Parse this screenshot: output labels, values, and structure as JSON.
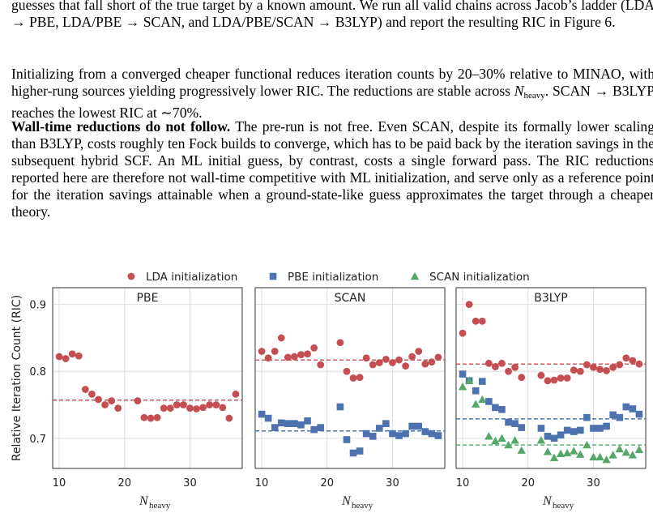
{
  "paragraphs": {
    "p1": "guesses that fall short of the true target by a known amount. We run all valid chains across Jacob’s ladder (LDA → PBE, LDA/PBE → SCAN, and LDA/PBE/SCAN → B3LYP) and report the resulting RIC in Figure 6.",
    "p2_a": "Initializing from a converged cheaper functional reduces iteration counts by 20–30% relative to MINAO, with higher-rung sources yielding progressively lower RIC. The reductions are stable across ",
    "p2_sym": "N",
    "p2_sub": "heavy",
    "p2_b": ". SCAN → B3LYP reaches the lowest RIC at ∼70%.",
    "p3_bold": "Wall-time reductions do not follow.",
    "p3_rest": " The pre-run is not free. Even SCAN, despite its formally lower scaling than B3LYP, costs roughly ten Fock builds to converge, which has to be paid back by the iteration savings in the subsequent hybrid SCF. An ML initial guess, by contrast, costs a single forward pass. The RIC reductions reported here are therefore not wall-time competitive with ML initialization, and serve only as a reference point for the iteration savings attainable when a ground-state-like guess approximates the target through a cheaper theory."
  },
  "chart_data": {
    "type": "scatter",
    "ylabel": "Relative Iteration Count (RIC)",
    "xlabel_symbol": "N",
    "xlabel_sub": "heavy",
    "xlim": [
      9,
      38
    ],
    "ylim": [
      0.655,
      0.925
    ],
    "xticks": [
      10,
      20,
      30
    ],
    "yticks": [
      0.7,
      0.8,
      0.9
    ],
    "ytick_labels": [
      "0.7",
      "0.8",
      "0.9"
    ],
    "legend": [
      {
        "name": "LDA initialization",
        "color": "#c44e52",
        "marker": "circle"
      },
      {
        "name": "PBE initialization",
        "color": "#4c72b0",
        "marker": "square"
      },
      {
        "name": "SCAN initialization",
        "color": "#55a868",
        "marker": "triangle"
      }
    ],
    "panels": [
      {
        "title": "PBE",
        "series": [
          {
            "name": "LDA initialization",
            "color": "#c44e52",
            "marker": "circle",
            "mean": 0.757,
            "x": [
              10,
              11,
              12,
              13,
              14,
              15,
              16,
              17,
              18,
              19,
              22,
              23,
              24,
              25,
              26,
              27,
              28,
              29,
              30,
              31,
              32,
              33,
              34,
              35,
              36,
              37
            ],
            "y": [
              0.822,
              0.819,
              0.826,
              0.823,
              0.773,
              0.766,
              0.758,
              0.75,
              0.756,
              0.745,
              0.756,
              0.731,
              0.73,
              0.731,
              0.745,
              0.745,
              0.75,
              0.75,
              0.745,
              0.744,
              0.746,
              0.75,
              0.75,
              0.746,
              0.73,
              0.766
            ]
          }
        ]
      },
      {
        "title": "SCAN",
        "series": [
          {
            "name": "LDA initialization",
            "color": "#c44e52",
            "marker": "circle",
            "mean": 0.817,
            "x": [
              10,
              11,
              12,
              13,
              14,
              15,
              16,
              17,
              18,
              19,
              22,
              23,
              24,
              25,
              26,
              27,
              28,
              29,
              30,
              31,
              32,
              33,
              34,
              35,
              36,
              37
            ],
            "y": [
              0.83,
              0.82,
              0.83,
              0.85,
              0.821,
              0.822,
              0.825,
              0.826,
              0.835,
              0.81,
              0.843,
              0.8,
              0.79,
              0.791,
              0.82,
              0.81,
              0.813,
              0.818,
              0.813,
              0.817,
              0.808,
              0.822,
              0.83,
              0.811,
              0.814,
              0.821
            ]
          },
          {
            "name": "PBE initialization",
            "color": "#4c72b0",
            "marker": "square",
            "mean": 0.711,
            "x": [
              10,
              11,
              12,
              13,
              14,
              15,
              16,
              17,
              18,
              19,
              22,
              23,
              24,
              25,
              26,
              27,
              28,
              29,
              30,
              31,
              32,
              33,
              34,
              35,
              36,
              37
            ],
            "y": [
              0.736,
              0.73,
              0.716,
              0.723,
              0.722,
              0.722,
              0.72,
              0.726,
              0.713,
              0.716,
              0.747,
              0.698,
              0.678,
              0.681,
              0.707,
              0.703,
              0.715,
              0.722,
              0.707,
              0.704,
              0.707,
              0.718,
              0.718,
              0.71,
              0.707,
              0.704
            ]
          }
        ]
      },
      {
        "title": "B3LYP",
        "series": [
          {
            "name": "LDA initialization",
            "color": "#c44e52",
            "marker": "circle",
            "mean": 0.811,
            "x": [
              10,
              11,
              12,
              13,
              14,
              15,
              16,
              17,
              18,
              19,
              22,
              23,
              24,
              25,
              26,
              27,
              28,
              29,
              30,
              31,
              32,
              33,
              34,
              35,
              36,
              37
            ],
            "y": [
              0.857,
              0.9,
              0.875,
              0.875,
              0.812,
              0.807,
              0.812,
              0.8,
              0.806,
              0.791,
              0.794,
              0.786,
              0.787,
              0.79,
              0.79,
              0.802,
              0.8,
              0.81,
              0.806,
              0.803,
              0.801,
              0.806,
              0.81,
              0.82,
              0.816,
              0.811
            ]
          },
          {
            "name": "PBE initialization",
            "color": "#4c72b0",
            "marker": "square",
            "mean": 0.729,
            "x": [
              10,
              11,
              12,
              13,
              14,
              15,
              16,
              17,
              18,
              19,
              22,
              23,
              24,
              25,
              26,
              27,
              28,
              29,
              30,
              31,
              32,
              33,
              34,
              35,
              36,
              37
            ],
            "y": [
              0.796,
              0.786,
              0.771,
              0.785,
              0.755,
              0.746,
              0.743,
              0.724,
              0.722,
              0.716,
              0.715,
              0.703,
              0.7,
              0.705,
              0.712,
              0.71,
              0.712,
              0.731,
              0.715,
              0.715,
              0.718,
              0.735,
              0.731,
              0.747,
              0.744,
              0.736
            ]
          },
          {
            "name": "SCAN initialization",
            "color": "#55a868",
            "marker": "triangle",
            "mean": 0.69,
            "x": [
              10,
              11,
              12,
              13,
              14,
              15,
              16,
              17,
              18,
              19,
              22,
              23,
              24,
              25,
              26,
              27,
              28,
              29,
              30,
              31,
              32,
              33,
              34,
              35,
              36,
              37
            ],
            "y": [
              0.777,
              0.786,
              0.751,
              0.758,
              0.703,
              0.696,
              0.7,
              0.69,
              0.697,
              0.682,
              0.697,
              0.68,
              0.671,
              0.677,
              0.678,
              0.681,
              0.676,
              0.69,
              0.672,
              0.672,
              0.668,
              0.675,
              0.684,
              0.679,
              0.675,
              0.683
            ]
          }
        ]
      }
    ]
  }
}
